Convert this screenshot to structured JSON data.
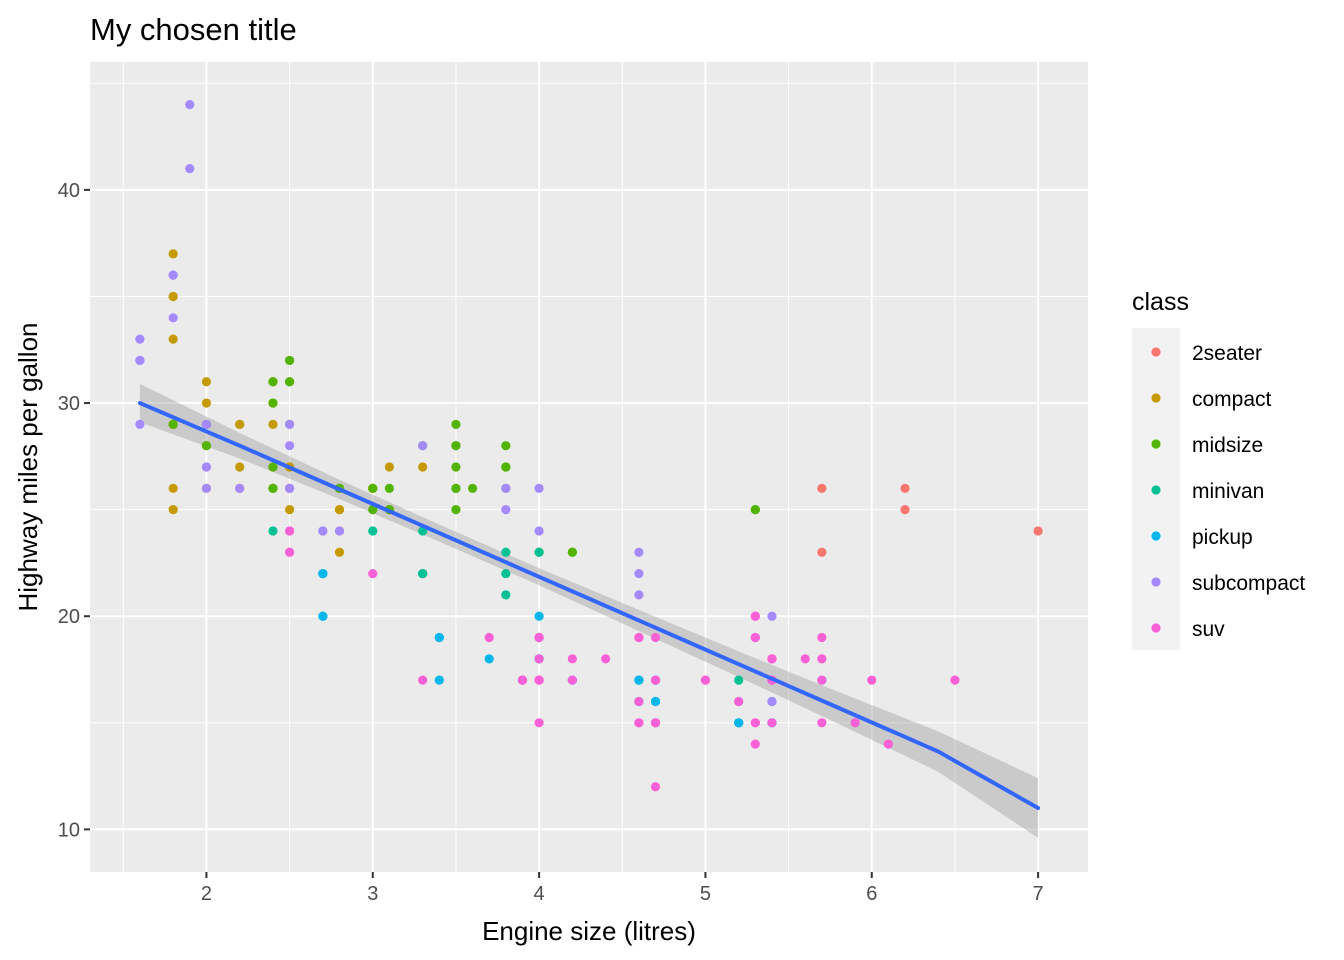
{
  "chart_data": {
    "type": "scatter",
    "title": "My chosen title",
    "xlabel": "Engine size (litres)",
    "ylabel": "Highway miles per gallon",
    "xlim": [
      1.3,
      7.3
    ],
    "ylim": [
      8,
      46
    ],
    "x_ticks": [
      2,
      3,
      4,
      5,
      6,
      7
    ],
    "y_ticks": [
      10,
      20,
      30,
      40
    ],
    "grid": true,
    "legend": {
      "title": "class",
      "position": "right"
    },
    "series": [
      {
        "name": "2seater",
        "color": "#F8766D",
        "points": [
          [
            5.7,
            26
          ],
          [
            5.7,
            23
          ],
          [
            6.2,
            26
          ],
          [
            6.2,
            25
          ],
          [
            7.0,
            24
          ]
        ]
      },
      {
        "name": "compact",
        "color": "#C49A00",
        "points": [
          [
            1.8,
            29
          ],
          [
            1.8,
            29
          ],
          [
            2.0,
            31
          ],
          [
            2.0,
            30
          ],
          [
            2.8,
            26
          ],
          [
            2.8,
            26
          ],
          [
            3.1,
            27
          ],
          [
            1.8,
            26
          ],
          [
            1.8,
            25
          ],
          [
            2.0,
            28
          ],
          [
            2.0,
            28
          ],
          [
            2.8,
            25
          ],
          [
            2.8,
            25
          ],
          [
            3.1,
            25
          ],
          [
            3.1,
            25
          ],
          [
            2.2,
            26
          ],
          [
            2.2,
            27
          ],
          [
            2.4,
            31
          ],
          [
            2.4,
            31
          ],
          [
            3.0,
            26
          ],
          [
            3.0,
            26
          ],
          [
            3.3,
            27
          ],
          [
            1.8,
            33
          ],
          [
            1.8,
            35
          ],
          [
            1.8,
            37
          ],
          [
            1.8,
            35
          ],
          [
            1.8,
            29
          ],
          [
            2.0,
            29
          ],
          [
            2.0,
            26
          ],
          [
            2.0,
            29
          ],
          [
            2.4,
            26
          ],
          [
            2.4,
            27
          ],
          [
            2.5,
            27
          ],
          [
            2.5,
            25
          ],
          [
            2.8,
            23
          ],
          [
            2.8,
            24
          ],
          [
            2.5,
            27
          ],
          [
            2.5,
            26
          ],
          [
            2.2,
            29
          ],
          [
            2.2,
            29
          ],
          [
            2.4,
            30
          ],
          [
            2.4,
            29
          ],
          [
            3.0,
            26
          ],
          [
            3.0,
            26
          ],
          [
            2.5,
            26
          ]
        ]
      },
      {
        "name": "midsize",
        "color": "#53B400",
        "points": [
          [
            2.4,
            31
          ],
          [
            2.4,
            30
          ],
          [
            2.5,
            29
          ],
          [
            2.5,
            32
          ],
          [
            2.5,
            31
          ],
          [
            3.5,
            28
          ],
          [
            3.5,
            28
          ],
          [
            3.8,
            26
          ],
          [
            3.8,
            27
          ],
          [
            3.5,
            26
          ],
          [
            3.6,
            26
          ],
          [
            3.8,
            27
          ],
          [
            3.8,
            28
          ],
          [
            3.1,
            26
          ],
          [
            3.3,
            28
          ],
          [
            3.5,
            25
          ],
          [
            4.2,
            23
          ],
          [
            4.2,
            23
          ],
          [
            2.8,
            26
          ],
          [
            3.3,
            22
          ],
          [
            3.5,
            29
          ],
          [
            3.5,
            27
          ],
          [
            3.0,
            25
          ],
          [
            3.0,
            26
          ],
          [
            3.5,
            26
          ],
          [
            2.4,
            26
          ],
          [
            2.4,
            27
          ],
          [
            2.4,
            26
          ],
          [
            2.5,
            32
          ],
          [
            2.5,
            31
          ],
          [
            1.8,
            29
          ],
          [
            2.0,
            28
          ],
          [
            2.0,
            29
          ],
          [
            2.8,
            26
          ],
          [
            3.1,
            25
          ],
          [
            4.0,
            23
          ],
          [
            5.3,
            25
          ],
          [
            5.3,
            25
          ]
        ]
      },
      {
        "name": "minivan",
        "color": "#00C094",
        "points": [
          [
            2.4,
            24
          ],
          [
            3.0,
            24
          ],
          [
            3.3,
            22
          ],
          [
            3.3,
            22
          ],
          [
            3.3,
            24
          ],
          [
            3.8,
            22
          ],
          [
            3.8,
            23
          ],
          [
            3.8,
            21
          ],
          [
            4.0,
            23
          ],
          [
            5.2,
            17
          ],
          [
            5.9,
            15
          ]
        ]
      },
      {
        "name": "pickup",
        "color": "#00B6EB",
        "points": [
          [
            3.7,
            18
          ],
          [
            3.9,
            17
          ],
          [
            4.7,
            16
          ],
          [
            4.7,
            16
          ],
          [
            4.7,
            17
          ],
          [
            5.2,
            15
          ],
          [
            5.2,
            16
          ],
          [
            4.7,
            17
          ],
          [
            4.7,
            15
          ],
          [
            5.7,
            17
          ],
          [
            2.7,
            20
          ],
          [
            2.7,
            22
          ],
          [
            3.4,
            17
          ],
          [
            3.4,
            19
          ],
          [
            4.0,
            20
          ],
          [
            4.0,
            18
          ],
          [
            4.6,
            17
          ],
          [
            4.6,
            16
          ],
          [
            5.4,
            15
          ],
          [
            5.4,
            15
          ],
          [
            2.7,
            22
          ],
          [
            2.7,
            20
          ],
          [
            3.4,
            19
          ],
          [
            4.0,
            18
          ],
          [
            4.0,
            18
          ],
          [
            4.6,
            17
          ],
          [
            4.6,
            16
          ],
          [
            5.2,
            15
          ],
          [
            5.2,
            15
          ],
          [
            5.4,
            16
          ],
          [
            4.2,
            17
          ],
          [
            4.2,
            17
          ],
          [
            2.7,
            22
          ]
        ]
      },
      {
        "name": "subcompact",
        "color": "#A58AFF",
        "points": [
          [
            1.6,
            33
          ],
          [
            1.6,
            32
          ],
          [
            1.6,
            32
          ],
          [
            1.6,
            29
          ],
          [
            1.6,
            32
          ],
          [
            1.8,
            34
          ],
          [
            1.8,
            36
          ],
          [
            1.8,
            36
          ],
          [
            2.0,
            29
          ],
          [
            1.9,
            44
          ],
          [
            2.0,
            26
          ],
          [
            2.0,
            29
          ],
          [
            2.5,
            29
          ],
          [
            2.5,
            28
          ],
          [
            2.5,
            26
          ],
          [
            3.3,
            28
          ],
          [
            2.0,
            27
          ],
          [
            2.0,
            27
          ],
          [
            2.7,
            24
          ],
          [
            2.7,
            24
          ],
          [
            3.8,
            26
          ],
          [
            3.8,
            25
          ],
          [
            4.0,
            26
          ],
          [
            4.0,
            24
          ],
          [
            4.6,
            21
          ],
          [
            4.6,
            22
          ],
          [
            4.6,
            23
          ],
          [
            5.4,
            20
          ],
          [
            1.9,
            41
          ],
          [
            2.2,
            26
          ],
          [
            2.5,
            26
          ],
          [
            2.8,
            24
          ],
          [
            5.4,
            16
          ]
        ]
      },
      {
        "name": "suv",
        "color": "#FB61D7",
        "points": [
          [
            5.3,
            20
          ],
          [
            5.3,
            15
          ],
          [
            5.3,
            20
          ],
          [
            5.7,
            17
          ],
          [
            6.0,
            17
          ],
          [
            5.7,
            15
          ],
          [
            6.5,
            17
          ],
          [
            4.0,
            17
          ],
          [
            4.0,
            19
          ],
          [
            4.6,
            19
          ],
          [
            5.0,
            17
          ],
          [
            5.4,
            18
          ],
          [
            5.4,
            17
          ],
          [
            3.7,
            19
          ],
          [
            3.9,
            17
          ],
          [
            4.7,
            17
          ],
          [
            4.7,
            12
          ],
          [
            4.7,
            15
          ],
          [
            5.2,
            16
          ],
          [
            5.7,
            18
          ],
          [
            5.9,
            15
          ],
          [
            4.7,
            19
          ],
          [
            4.7,
            15
          ],
          [
            4.6,
            15
          ],
          [
            5.4,
            15
          ],
          [
            5.4,
            17
          ],
          [
            4.0,
            17
          ],
          [
            4.2,
            18
          ],
          [
            4.4,
            18
          ],
          [
            4.6,
            15
          ],
          [
            5.4,
            18
          ],
          [
            5.3,
            19
          ],
          [
            4.0,
            15
          ],
          [
            4.0,
            18
          ],
          [
            4.6,
            16
          ],
          [
            5.0,
            17
          ],
          [
            5.6,
            18
          ],
          [
            6.1,
            14
          ],
          [
            5.3,
            14
          ],
          [
            5.3,
            15
          ],
          [
            5.7,
            19
          ],
          [
            3.0,
            22
          ],
          [
            3.3,
            17
          ],
          [
            2.5,
            24
          ],
          [
            2.5,
            23
          ],
          [
            4.0,
            19
          ],
          [
            3.9,
            17
          ],
          [
            5.4,
            18
          ],
          [
            4.0,
            17
          ],
          [
            4.0,
            19
          ],
          [
            4.6,
            19
          ],
          [
            2.5,
            23
          ],
          [
            2.5,
            24
          ],
          [
            3.9,
            17
          ],
          [
            4.2,
            17
          ],
          [
            4.6,
            19
          ],
          [
            4.7,
            17
          ],
          [
            5.3,
            19
          ],
          [
            5.3,
            20
          ]
        ]
      }
    ],
    "trend": {
      "method": "linear fit",
      "color": "#3366FF",
      "ribbon_color": "#999999",
      "line": [
        [
          1.6,
          30.0
        ],
        [
          2.2,
          28.0
        ],
        [
          2.8,
          25.95
        ],
        [
          3.4,
          23.9
        ],
        [
          4.0,
          21.85
        ],
        [
          4.6,
          19.8
        ],
        [
          5.2,
          17.75
        ],
        [
          5.8,
          15.7
        ],
        [
          6.4,
          13.65
        ],
        [
          7.0,
          11.0
        ]
      ],
      "upper": [
        [
          1.6,
          30.9
        ],
        [
          2.2,
          28.6
        ],
        [
          2.8,
          26.4
        ],
        [
          3.4,
          24.3
        ],
        [
          4.0,
          22.25
        ],
        [
          4.6,
          20.3
        ],
        [
          5.2,
          18.35
        ],
        [
          5.8,
          16.45
        ],
        [
          6.4,
          14.6
        ],
        [
          7.0,
          12.4
        ]
      ],
      "lower": [
        [
          1.6,
          29.1
        ],
        [
          2.2,
          27.4
        ],
        [
          2.8,
          25.5
        ],
        [
          3.4,
          23.5
        ],
        [
          4.0,
          21.45
        ],
        [
          4.6,
          19.3
        ],
        [
          5.2,
          17.15
        ],
        [
          5.8,
          14.95
        ],
        [
          6.4,
          12.7
        ],
        [
          7.0,
          9.6
        ]
      ]
    }
  }
}
